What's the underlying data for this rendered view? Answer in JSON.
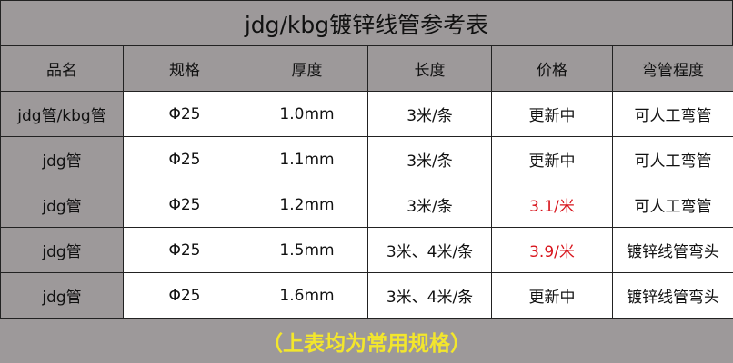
{
  "title": "jdg/kbg镀锌线管参考表",
  "headers": [
    "品名",
    "规格",
    "厚度",
    "长度",
    "价格",
    "弯管程度"
  ],
  "rows": [
    [
      "jdg管/kbg管",
      "Φ25",
      "1.0mm",
      "3米/条",
      "更新中",
      "可人工弯管"
    ],
    [
      "jdg管",
      "Φ25",
      "1.1mm",
      "3米/条",
      "更新中",
      "可人工弯管"
    ],
    [
      "jdg管",
      "Φ25",
      "1.2mm",
      "3米/条",
      "3.1/米",
      "可人工弯管"
    ],
    [
      "jdg管",
      "Φ25",
      "1.5mm",
      "3米、4米/条",
      "3.9/米",
      "镀锌线管弯头"
    ],
    [
      "jdg管",
      "Φ25",
      "1.6mm",
      "3米、4米/条",
      "更新中",
      "镀锌线管弯头"
    ]
  ],
  "highlight_color": "#d8141c",
  "footer": "（上表均为常用规格）"
}
